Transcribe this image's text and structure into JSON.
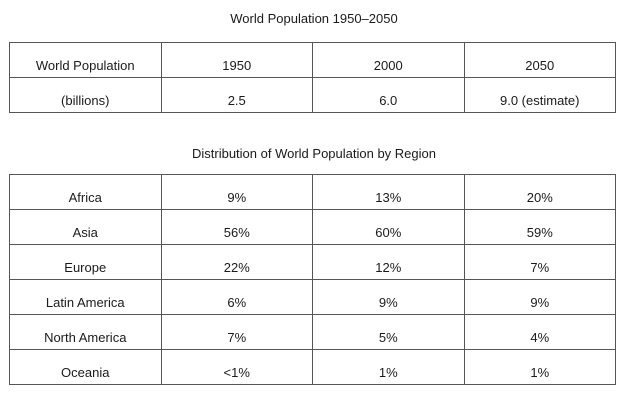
{
  "tables": {
    "population": {
      "title": "World Population 1950–2050",
      "rows": [
        [
          "World Population",
          "1950",
          "2000",
          "2050"
        ],
        [
          "(billions)",
          "2.5",
          "6.0",
          "9.0 (estimate)"
        ]
      ]
    },
    "distribution": {
      "title": "Distribution of World Population by Region",
      "rows": [
        [
          "Africa",
          "9%",
          "13%",
          "20%"
        ],
        [
          "Asia",
          "56%",
          "60%",
          "59%"
        ],
        [
          "Europe",
          "22%",
          "12%",
          "7%"
        ],
        [
          "Latin America",
          "6%",
          "9%",
          "9%"
        ],
        [
          "North America",
          "7%",
          "5%",
          "4%"
        ],
        [
          "Oceania",
          "<1%",
          "1%",
          "1%"
        ]
      ]
    }
  }
}
